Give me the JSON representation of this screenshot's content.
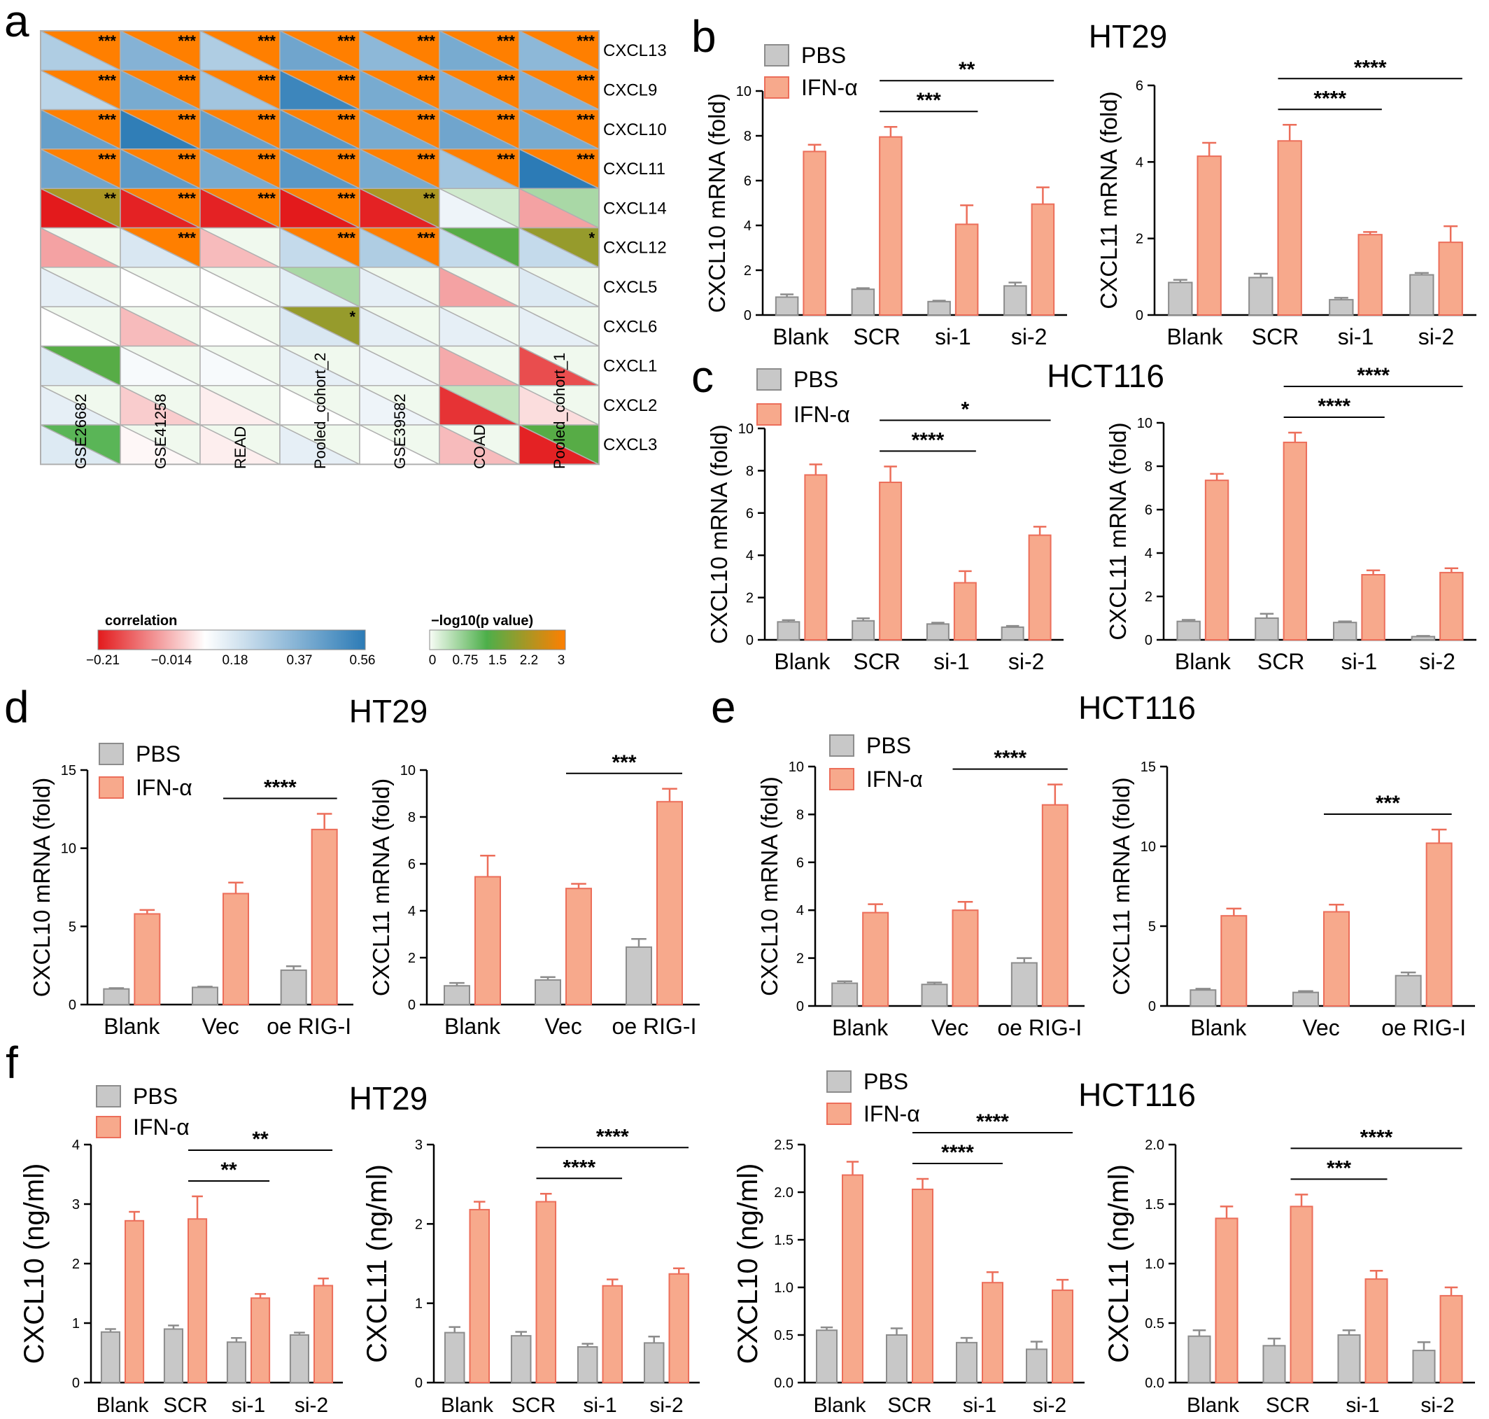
{
  "colors": {
    "pbs_fill": "#c8c8c8",
    "pbs_edge": "#8c8c8c",
    "ifn_fill": "#f7a98c",
    "ifn_edge": "#ec6e5a",
    "corr_low": "#e31a1c",
    "corr_mid": "#ffffff",
    "corr_high": "#2c7bb6",
    "p_low": "#f7fcf5",
    "p_mid": "#4daf4a",
    "p_high": "#ff7f00"
  },
  "panel_labels": {
    "a": "a",
    "b": "b",
    "c": "c",
    "d": "d",
    "e": "e",
    "f": "f"
  },
  "group_titles": {
    "b": "HT29",
    "c": "HCT116",
    "d": "HT29",
    "e": "HCT116",
    "f_left": "HT29",
    "f_right": "HCT116"
  },
  "heatmap": {
    "rows": [
      "CXCL13",
      "CXCL9",
      "CXCL10",
      "CXCL11",
      "CXCL14",
      "CXCL12",
      "CXCL5",
      "CXCL6",
      "CXCL1",
      "CXCL2",
      "CXCL3"
    ],
    "columns": [
      "GSE26682",
      "GSE41258",
      "READ",
      "Pooled_cohort_2",
      "GSE39582",
      "COAD",
      "Pooled_cohort_1"
    ],
    "correlation": [
      [
        0.25,
        0.35,
        0.25,
        0.4,
        0.33,
        0.38,
        0.33
      ],
      [
        0.22,
        0.38,
        0.28,
        0.52,
        0.38,
        0.35,
        0.35
      ],
      [
        0.42,
        0.55,
        0.42,
        0.45,
        0.38,
        0.4,
        0.38
      ],
      [
        0.4,
        0.44,
        0.38,
        0.45,
        0.38,
        0.28,
        0.56
      ],
      [
        -0.21,
        -0.2,
        -0.2,
        -0.21,
        -0.2,
        0.1,
        -0.05
      ],
      [
        -0.05,
        0.15,
        -0.02,
        0.2,
        0.25,
        0.2,
        0.2
      ],
      [
        0.12,
        0.06,
        0.06,
        0.13,
        0.12,
        -0.05,
        0.14
      ],
      [
        0.06,
        -0.02,
        0.06,
        0.15,
        0.12,
        0.12,
        0.12
      ],
      [
        0.14,
        0.08,
        0.08,
        0.12,
        0.1,
        -0.04,
        -0.15
      ],
      [
        0.12,
        0.0,
        0.04,
        0.06,
        0.1,
        -0.18,
        0.02
      ],
      [
        0.14,
        0.05,
        0.04,
        0.12,
        0.06,
        -0.02,
        -0.2
      ]
    ],
    "neglog10p": [
      [
        3,
        3,
        3,
        3,
        3,
        3,
        3
      ],
      [
        3,
        3,
        3,
        3,
        3,
        3,
        3
      ],
      [
        3,
        3,
        3,
        3,
        3,
        3,
        3
      ],
      [
        3,
        3,
        3,
        3,
        3,
        3,
        3
      ],
      [
        2.2,
        3,
        3,
        3,
        2.2,
        0.3,
        0.6
      ],
      [
        0.05,
        3,
        0.05,
        3,
        3,
        1.4,
        2.0
      ],
      [
        0.05,
        0.05,
        0.05,
        0.6,
        0.05,
        0.05,
        0.05
      ],
      [
        0.05,
        0.05,
        0.05,
        2.0,
        0.05,
        0.05,
        0.05
      ],
      [
        1.4,
        0.05,
        0.05,
        0.05,
        0.05,
        0.05,
        0.05
      ],
      [
        0.05,
        0.05,
        0.05,
        0.05,
        0.05,
        0.4,
        0.05
      ],
      [
        1.2,
        0.05,
        0.05,
        0.05,
        0.05,
        0.05,
        1.4
      ]
    ],
    "stars": [
      [
        "***",
        "***",
        "***",
        "***",
        "***",
        "***",
        "***"
      ],
      [
        "***",
        "***",
        "***",
        "***",
        "***",
        "***",
        "***"
      ],
      [
        "***",
        "***",
        "***",
        "***",
        "***",
        "***",
        "***"
      ],
      [
        "***",
        "***",
        "***",
        "***",
        "***",
        "***",
        "***"
      ],
      [
        "**",
        "***",
        "***",
        "***",
        "**",
        "",
        ""
      ],
      [
        "",
        "***",
        "",
        "***",
        "***",
        "",
        "*"
      ],
      [
        "",
        "",
        "",
        "",
        "",
        "",
        ""
      ],
      [
        "",
        "",
        "",
        "*",
        "",
        "",
        ""
      ],
      [
        "",
        "",
        "",
        "",
        "",
        "",
        ""
      ],
      [
        "",
        "",
        "",
        "",
        "",
        "",
        ""
      ],
      [
        "",
        "",
        "",
        "",
        "",
        "",
        ""
      ]
    ],
    "corr_legend_title": "correlation",
    "corr_legend_ticks": [
      "−0.21",
      "−0.014",
      "0.18",
      "0.37",
      "0.56"
    ],
    "p_legend_title": "−log10(p value)",
    "p_legend_ticks": [
      "0",
      "0.75",
      "1.5",
      "2.2",
      "3"
    ]
  },
  "chart_data": [
    {
      "id": "b1",
      "type": "bar",
      "categories": [
        "Blank",
        "SCR",
        "si-1",
        "si-2"
      ],
      "series": [
        {
          "name": "PBS",
          "values": [
            0.8,
            1.15,
            0.6,
            1.3
          ],
          "errors": [
            0.12,
            0.05,
            0.04,
            0.15
          ]
        },
        {
          "name": "IFN-α",
          "values": [
            7.3,
            7.95,
            4.05,
            4.95
          ],
          "errors": [
            0.3,
            0.45,
            0.85,
            0.75
          ]
        }
      ],
      "ylabel": "CXCL10 mRNA (fold)",
      "ylim": [
        0,
        10
      ],
      "yticks": [
        "0",
        "2",
        "4",
        "6",
        "8",
        "10"
      ],
      "annotations": [
        {
          "text": "***",
          "from": 1,
          "to": 2
        },
        {
          "text": "**",
          "from": 1,
          "to": 3
        }
      ],
      "legend": [
        "PBS",
        "IFN-α"
      ]
    },
    {
      "id": "b2",
      "type": "bar",
      "categories": [
        "Blank",
        "SCR",
        "si-1",
        "si-2"
      ],
      "series": [
        {
          "name": "PBS",
          "values": [
            0.85,
            0.98,
            0.4,
            1.05
          ],
          "errors": [
            0.07,
            0.1,
            0.05,
            0.05
          ]
        },
        {
          "name": "IFN-α",
          "values": [
            4.15,
            4.55,
            2.1,
            1.9
          ],
          "errors": [
            0.35,
            0.42,
            0.07,
            0.42
          ]
        }
      ],
      "ylabel": "CXCL11 mRNA (fold)",
      "ylim": [
        0,
        6
      ],
      "yticks": [
        "0",
        "2",
        "4",
        "6"
      ],
      "annotations": [
        {
          "text": "****",
          "from": 1,
          "to": 2
        },
        {
          "text": "****",
          "from": 1,
          "to": 3
        }
      ]
    },
    {
      "id": "c1",
      "type": "bar",
      "categories": [
        "Blank",
        "SCR",
        "si-1",
        "si-2"
      ],
      "series": [
        {
          "name": "PBS",
          "values": [
            0.85,
            0.9,
            0.75,
            0.6
          ],
          "errors": [
            0.08,
            0.12,
            0.06,
            0.06
          ]
        },
        {
          "name": "IFN-α",
          "values": [
            7.8,
            7.45,
            2.7,
            4.95
          ],
          "errors": [
            0.5,
            0.75,
            0.55,
            0.4
          ]
        }
      ],
      "ylabel": "CXCL10 mRNA (fold)",
      "ylim": [
        0,
        10
      ],
      "yticks": [
        "0",
        "2",
        "4",
        "6",
        "8",
        "10"
      ],
      "annotations": [
        {
          "text": "****",
          "from": 1,
          "to": 2
        },
        {
          "text": "*",
          "from": 1,
          "to": 3
        }
      ],
      "legend": [
        "PBS",
        "IFN-α"
      ]
    },
    {
      "id": "c2",
      "type": "bar",
      "categories": [
        "Blank",
        "SCR",
        "si-1",
        "si-2"
      ],
      "series": [
        {
          "name": "PBS",
          "values": [
            0.85,
            1.0,
            0.8,
            0.15
          ],
          "errors": [
            0.07,
            0.2,
            0.05,
            0.03
          ]
        },
        {
          "name": "IFN-α",
          "values": [
            7.35,
            9.1,
            3.0,
            3.1
          ],
          "errors": [
            0.3,
            0.45,
            0.2,
            0.2
          ]
        }
      ],
      "ylabel": "CXCL11 mRNA (fold)",
      "ylim": [
        0,
        10
      ],
      "yticks": [
        "0",
        "2",
        "4",
        "6",
        "8",
        "10"
      ],
      "annotations": [
        {
          "text": "****",
          "from": 1,
          "to": 2
        },
        {
          "text": "****",
          "from": 1,
          "to": 3
        }
      ]
    },
    {
      "id": "d1",
      "type": "bar",
      "categories": [
        "Blank",
        "Vec",
        "oe RIG-I"
      ],
      "series": [
        {
          "name": "PBS",
          "values": [
            1.0,
            1.1,
            2.2
          ],
          "errors": [
            0.05,
            0.05,
            0.25
          ]
        },
        {
          "name": "IFN-α",
          "values": [
            5.8,
            7.1,
            11.2
          ],
          "errors": [
            0.25,
            0.7,
            1.0
          ]
        }
      ],
      "ylabel": "CXCL10 mRNA (fold)",
      "ylim": [
        0,
        15
      ],
      "yticks": [
        "0",
        "5",
        "10",
        "15"
      ],
      "annotations": [
        {
          "text": "****",
          "from": 1,
          "to": 2
        }
      ],
      "legend": [
        "PBS",
        "IFN-α"
      ]
    },
    {
      "id": "d2",
      "type": "bar",
      "categories": [
        "Blank",
        "Vec",
        "oe RIG-I"
      ],
      "series": [
        {
          "name": "PBS",
          "values": [
            0.8,
            1.05,
            2.45
          ],
          "errors": [
            0.12,
            0.12,
            0.35
          ]
        },
        {
          "name": "IFN-α",
          "values": [
            5.45,
            4.95,
            8.65
          ],
          "errors": [
            0.9,
            0.2,
            0.55
          ]
        }
      ],
      "ylabel": "CXCL11 mRNA (fold)",
      "ylim": [
        0,
        10
      ],
      "yticks": [
        "0",
        "2",
        "4",
        "6",
        "8",
        "10"
      ],
      "annotations": [
        {
          "text": "***",
          "from": 1,
          "to": 2
        }
      ]
    },
    {
      "id": "e1",
      "type": "bar",
      "categories": [
        "Blank",
        "Vec",
        "oe RIG-I"
      ],
      "series": [
        {
          "name": "PBS",
          "values": [
            0.95,
            0.9,
            1.8
          ],
          "errors": [
            0.08,
            0.08,
            0.2
          ]
        },
        {
          "name": "IFN-α",
          "values": [
            3.9,
            4.0,
            8.4
          ],
          "errors": [
            0.35,
            0.35,
            0.85
          ]
        }
      ],
      "ylabel": "CXCL10 mRNA (fold)",
      "ylim": [
        0,
        10
      ],
      "yticks": [
        "0",
        "2",
        "4",
        "6",
        "8",
        "10"
      ],
      "annotations": [
        {
          "text": "****",
          "from": 1,
          "to": 2
        }
      ],
      "legend": [
        "PBS",
        "IFN-α"
      ]
    },
    {
      "id": "e2",
      "type": "bar",
      "categories": [
        "Blank",
        "Vec",
        "oe RIG-I"
      ],
      "series": [
        {
          "name": "PBS",
          "values": [
            1.0,
            0.85,
            1.9
          ],
          "errors": [
            0.08,
            0.08,
            0.2
          ]
        },
        {
          "name": "IFN-α",
          "values": [
            5.65,
            5.9,
            10.2
          ],
          "errors": [
            0.45,
            0.45,
            0.85
          ]
        }
      ],
      "ylabel": "CXCL11 mRNA (fold)",
      "ylim": [
        0,
        15
      ],
      "yticks": [
        "0",
        "5",
        "10",
        "15"
      ],
      "annotations": [
        {
          "text": "***",
          "from": 1,
          "to": 2
        }
      ]
    },
    {
      "id": "f1",
      "type": "bar",
      "categories": [
        "Blank",
        "SCR",
        "si-1",
        "si-2"
      ],
      "series": [
        {
          "name": "PBS",
          "values": [
            0.85,
            0.9,
            0.68,
            0.8
          ],
          "errors": [
            0.05,
            0.06,
            0.07,
            0.04
          ]
        },
        {
          "name": "IFN-α",
          "values": [
            2.72,
            2.75,
            1.42,
            1.63
          ],
          "errors": [
            0.15,
            0.38,
            0.07,
            0.12
          ]
        }
      ],
      "ylabel": "CXCL10 (ng/ml)",
      "ylim": [
        0,
        4
      ],
      "yticks": [
        "0",
        "1",
        "2",
        "3",
        "4"
      ],
      "annotations": [
        {
          "text": "**",
          "from": 1,
          "to": 2
        },
        {
          "text": "**",
          "from": 1,
          "to": 3
        }
      ],
      "legend": [
        "PBS",
        "IFN-α"
      ]
    },
    {
      "id": "f2",
      "type": "bar",
      "categories": [
        "Blank",
        "SCR",
        "si-1",
        "si-2"
      ],
      "series": [
        {
          "name": "PBS",
          "values": [
            0.63,
            0.59,
            0.45,
            0.5
          ],
          "errors": [
            0.07,
            0.05,
            0.04,
            0.08
          ]
        },
        {
          "name": "IFN-α",
          "values": [
            2.18,
            2.28,
            1.22,
            1.37
          ],
          "errors": [
            0.1,
            0.1,
            0.08,
            0.07
          ]
        }
      ],
      "ylabel": "CXCL11 (ng/ml)",
      "ylim": [
        0,
        3
      ],
      "yticks": [
        "0",
        "1",
        "2",
        "3"
      ],
      "annotations": [
        {
          "text": "****",
          "from": 1,
          "to": 2
        },
        {
          "text": "****",
          "from": 1,
          "to": 3
        }
      ]
    },
    {
      "id": "f3",
      "type": "bar",
      "categories": [
        "Blank",
        "SCR",
        "si-1",
        "si-2"
      ],
      "series": [
        {
          "name": "PBS",
          "values": [
            0.55,
            0.5,
            0.42,
            0.35
          ],
          "errors": [
            0.03,
            0.07,
            0.05,
            0.08
          ]
        },
        {
          "name": "IFN-α",
          "values": [
            2.18,
            2.03,
            1.05,
            0.97
          ],
          "errors": [
            0.14,
            0.11,
            0.11,
            0.11
          ]
        }
      ],
      "ylabel": "CXCL10 (ng/ml)",
      "ylim": [
        0,
        2.5
      ],
      "yticks": [
        "0.0",
        "0.5",
        "1.0",
        "1.5",
        "2.0",
        "2.5"
      ],
      "annotations": [
        {
          "text": "****",
          "from": 1,
          "to": 2
        },
        {
          "text": "****",
          "from": 1,
          "to": 3
        }
      ],
      "legend": [
        "PBS",
        "IFN-α"
      ]
    },
    {
      "id": "f4",
      "type": "bar",
      "categories": [
        "Blank",
        "SCR",
        "si-1",
        "si-2"
      ],
      "series": [
        {
          "name": "PBS",
          "values": [
            0.39,
            0.31,
            0.4,
            0.27
          ],
          "errors": [
            0.05,
            0.06,
            0.04,
            0.07
          ]
        },
        {
          "name": "IFN-α",
          "values": [
            1.38,
            1.48,
            0.87,
            0.73
          ],
          "errors": [
            0.1,
            0.1,
            0.07,
            0.07
          ]
        }
      ],
      "ylabel": "CXCL11 (ng/ml)",
      "ylim": [
        0,
        2.0
      ],
      "yticks": [
        "0.0",
        "0.5",
        "1.0",
        "1.5",
        "2.0"
      ],
      "annotations": [
        {
          "text": "***",
          "from": 1,
          "to": 2
        },
        {
          "text": "****",
          "from": 1,
          "to": 3
        }
      ]
    }
  ]
}
